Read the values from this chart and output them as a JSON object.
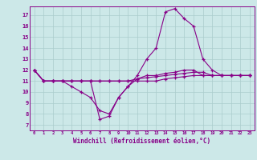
{
  "xlabel": "Windchill (Refroidissement éolien,°C)",
  "bg_color": "#cce8e8",
  "line_color": "#880088",
  "grid_color": "#aacccc",
  "x_ticks": [
    0,
    1,
    2,
    3,
    4,
    5,
    6,
    7,
    8,
    9,
    10,
    11,
    12,
    13,
    14,
    15,
    16,
    17,
    18,
    19,
    20,
    21,
    22,
    23
  ],
  "y_ticks": [
    7,
    8,
    9,
    10,
    11,
    12,
    13,
    14,
    15,
    16,
    17
  ],
  "xlim": [
    -0.5,
    23.5
  ],
  "ylim": [
    6.5,
    17.8
  ],
  "lines": [
    {
      "x": [
        0,
        1,
        2,
        3,
        4,
        5,
        6,
        7,
        8,
        9,
        10,
        11,
        12,
        13,
        14,
        15,
        16,
        17,
        18,
        19,
        20,
        21,
        22,
        23
      ],
      "y": [
        12,
        11,
        11,
        11,
        11,
        11,
        11,
        7.5,
        7.8,
        9.5,
        10.5,
        11.5,
        13,
        14,
        17.3,
        17.6,
        16.7,
        16.0,
        13.0,
        12.0,
        11.5,
        11.5,
        11.5,
        11.5
      ]
    },
    {
      "x": [
        0,
        1,
        2,
        3,
        4,
        5,
        6,
        7,
        8,
        9,
        10,
        11,
        12,
        13,
        14,
        15,
        16,
        17,
        18,
        19,
        20,
        21,
        22,
        23
      ],
      "y": [
        12,
        11,
        11,
        11,
        10.5,
        10,
        9.5,
        8.3,
        8.0,
        9.5,
        10.5,
        11.2,
        11.5,
        11.5,
        11.7,
        11.8,
        12.0,
        12.0,
        11.5,
        11.5,
        11.5,
        11.5,
        11.5,
        11.5
      ]
    },
    {
      "x": [
        0,
        1,
        2,
        3,
        4,
        5,
        6,
        7,
        8,
        9,
        10,
        11,
        12,
        13,
        14,
        15,
        16,
        17,
        18,
        19,
        20,
        21,
        22,
        23
      ],
      "y": [
        12,
        11,
        11,
        11,
        11,
        11,
        11,
        11,
        11,
        11,
        11,
        11.2,
        11.3,
        11.4,
        11.5,
        11.6,
        11.7,
        11.8,
        11.8,
        11.5,
        11.5,
        11.5,
        11.5,
        11.5
      ]
    },
    {
      "x": [
        0,
        1,
        2,
        3,
        4,
        5,
        6,
        7,
        8,
        9,
        10,
        11,
        12,
        13,
        14,
        15,
        16,
        17,
        18,
        19,
        20,
        21,
        22,
        23
      ],
      "y": [
        12,
        11,
        11,
        11,
        11,
        11,
        11,
        11,
        11,
        11,
        11,
        11,
        11,
        11,
        11.2,
        11.3,
        11.4,
        11.5,
        11.5,
        11.5,
        11.5,
        11.5,
        11.5,
        11.5
      ]
    }
  ]
}
